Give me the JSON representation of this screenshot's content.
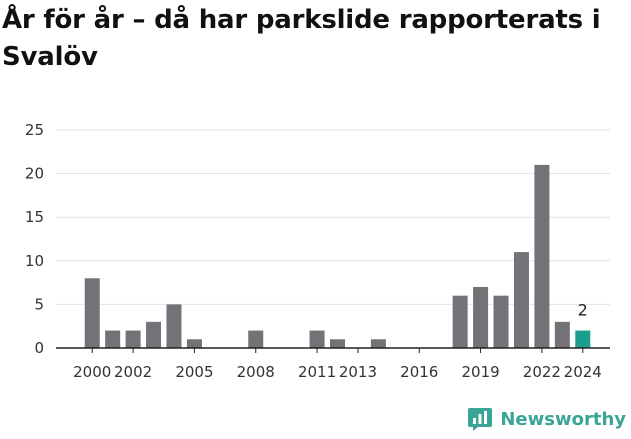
{
  "chart_data": {
    "type": "bar",
    "title": "År för år – då har parkslide rapporterats i Svalöv",
    "xlabel": "",
    "ylabel": "",
    "categories": [
      2000,
      2001,
      2002,
      2003,
      2004,
      2005,
      2006,
      2007,
      2008,
      2009,
      2010,
      2011,
      2012,
      2013,
      2014,
      2015,
      2016,
      2017,
      2018,
      2019,
      2020,
      2021,
      2022,
      2023,
      2024
    ],
    "values": [
      8,
      2,
      2,
      3,
      5,
      1,
      0,
      0,
      2,
      0,
      0,
      2,
      1,
      0,
      1,
      0,
      0,
      0,
      6,
      7,
      6,
      11,
      21,
      3,
      2
    ],
    "x_tick_labels": [
      "2000",
      "2002",
      "2005",
      "2008",
      "2011",
      "2013",
      "2016",
      "2019",
      "2022",
      "2024"
    ],
    "x_tick_years": [
      2000,
      2002,
      2005,
      2008,
      2011,
      2013,
      2016,
      2019,
      2022,
      2024
    ],
    "y_ticks": [
      0,
      5,
      10,
      15,
      20,
      25
    ],
    "ylim": [
      0,
      25
    ],
    "grid": true,
    "highlight_category": 2024,
    "highlight_label": "2",
    "colors": {
      "bar": "#727277",
      "highlight": "#1b9e8e",
      "grid": "#e2e2e2",
      "axis": "#222222"
    }
  },
  "brand": {
    "name": "Newsworthy",
    "icon": "newsworthy-logo-icon",
    "color": "#3aa597"
  }
}
